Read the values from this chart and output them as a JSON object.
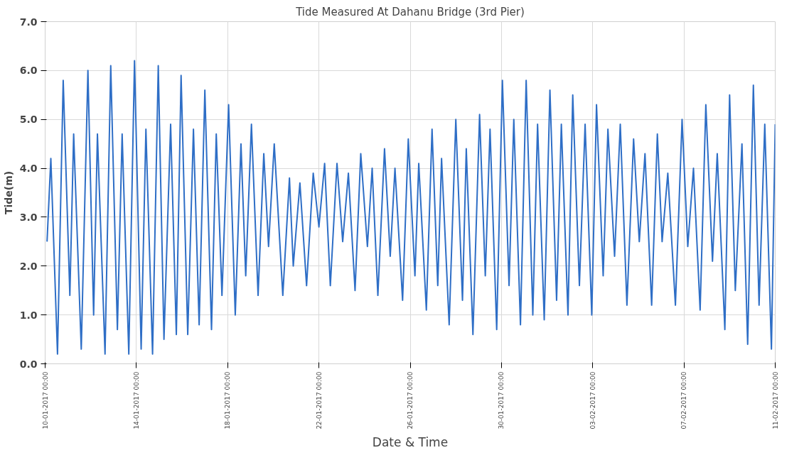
{
  "chart_data": {
    "type": "line",
    "title": "Tide Measured At Dahanu Bridge (3rd Pier)",
    "xlabel": "Date & Time",
    "ylabel": "Tide(m)",
    "x": [
      "2017-01-10T02:00",
      "2017-01-10T06:00",
      "2017-01-10T13:00",
      "2017-01-10T19:00",
      "2017-01-11T02:00",
      "2017-01-11T06:00",
      "2017-01-11T14:00",
      "2017-01-11T21:00",
      "2017-01-12T03:00",
      "2017-01-12T07:00",
      "2017-01-12T15:00",
      "2017-01-12T21:00",
      "2017-01-13T04:00",
      "2017-01-13T09:00",
      "2017-01-13T16:00",
      "2017-01-13T22:00",
      "2017-01-14T05:00",
      "2017-01-14T10:00",
      "2017-01-14T17:00",
      "2017-01-14T23:00",
      "2017-01-15T05:00",
      "2017-01-15T12:00",
      "2017-01-15T18:00",
      "2017-01-15T23:00",
      "2017-01-16T06:00",
      "2017-01-16T12:00",
      "2017-01-16T18:00",
      "2017-01-17T00:00",
      "2017-01-17T07:00",
      "2017-01-17T12:00",
      "2017-01-17T18:00",
      "2017-01-18T01:00",
      "2017-01-18T08:00",
      "2017-01-18T14:00",
      "2017-01-18T19:00",
      "2017-01-19T01:00",
      "2017-01-19T08:00",
      "2017-01-19T14:00",
      "2017-01-19T19:00",
      "2017-01-20T01:00",
      "2017-01-20T10:00",
      "2017-01-20T17:00",
      "2017-01-20T21:00",
      "2017-01-21T04:00",
      "2017-01-21T11:00",
      "2017-01-21T18:00",
      "2017-01-22T00:00",
      "2017-01-22T06:00",
      "2017-01-22T12:00",
      "2017-01-22T19:00",
      "2017-01-23T01:00",
      "2017-01-23T07:00",
      "2017-01-23T14:00",
      "2017-01-23T20:00",
      "2017-01-24T03:00",
      "2017-01-24T08:00",
      "2017-01-24T14:00",
      "2017-01-24T21:00",
      "2017-01-25T03:00",
      "2017-01-25T08:00",
      "2017-01-25T16:00",
      "2017-01-25T22:00",
      "2017-01-26T05:00",
      "2017-01-26T09:00",
      "2017-01-26T17:00",
      "2017-01-26T23:00",
      "2017-01-27T05:00",
      "2017-01-27T09:00",
      "2017-01-27T17:00",
      "2017-01-28T00:00",
      "2017-01-28T07:00",
      "2017-01-28T11:00",
      "2017-01-28T18:00",
      "2017-01-29T01:00",
      "2017-01-29T07:00",
      "2017-01-29T12:00",
      "2017-01-29T19:00",
      "2017-01-30T01:00",
      "2017-01-30T08:00",
      "2017-01-30T13:00",
      "2017-01-30T20:00",
      "2017-01-31T02:00",
      "2017-01-31T09:00",
      "2017-01-31T14:00",
      "2017-01-31T21:00",
      "2017-02-01T03:00",
      "2017-02-01T10:00",
      "2017-02-01T15:00",
      "2017-02-01T22:00",
      "2017-02-02T03:00",
      "2017-02-02T10:00",
      "2017-02-02T16:00",
      "2017-02-02T23:00",
      "2017-02-03T04:00",
      "2017-02-03T11:00",
      "2017-02-03T16:00",
      "2017-02-03T23:00",
      "2017-02-04T05:00",
      "2017-02-04T12:00",
      "2017-02-04T19:00",
      "2017-02-05T01:00",
      "2017-02-05T07:00",
      "2017-02-05T14:00",
      "2017-02-05T20:00",
      "2017-02-06T01:00",
      "2017-02-06T07:00",
      "2017-02-06T15:00",
      "2017-02-06T22:00",
      "2017-02-07T04:00",
      "2017-02-07T10:00",
      "2017-02-07T17:00",
      "2017-02-07T23:00",
      "2017-02-08T06:00",
      "2017-02-08T11:00",
      "2017-02-08T19:00",
      "2017-02-09T00:00",
      "2017-02-09T06:00",
      "2017-02-09T13:00",
      "2017-02-09T19:00",
      "2017-02-10T01:00",
      "2017-02-10T07:00",
      "2017-02-10T13:00",
      "2017-02-10T20:00",
      "2017-02-11T00:00"
    ],
    "series": [
      {
        "color": "#2e6ec6",
        "values": [
          2.5,
          4.2,
          0.2,
          5.8,
          1.4,
          4.7,
          0.3,
          6.0,
          1.0,
          4.7,
          0.2,
          6.1,
          0.7,
          4.7,
          0.2,
          6.2,
          0.3,
          4.8,
          0.2,
          6.1,
          0.5,
          4.9,
          0.6,
          5.9,
          0.6,
          4.8,
          0.8,
          5.6,
          0.7,
          4.7,
          1.4,
          5.3,
          1.0,
          4.5,
          1.8,
          4.9,
          1.4,
          4.3,
          2.4,
          4.5,
          1.4,
          3.8,
          2.0,
          3.7,
          1.6,
          3.9,
          2.8,
          4.1,
          1.6,
          4.1,
          2.5,
          3.9,
          1.5,
          4.3,
          2.4,
          4.0,
          1.4,
          4.4,
          2.2,
          4.0,
          1.3,
          4.6,
          1.8,
          4.1,
          1.1,
          4.8,
          1.6,
          4.2,
          0.8,
          5.0,
          1.3,
          4.4,
          0.6,
          5.1,
          1.8,
          4.8,
          0.7,
          5.8,
          1.6,
          5.0,
          0.8,
          5.8,
          1.0,
          4.9,
          0.9,
          5.6,
          1.3,
          4.9,
          1.0,
          5.5,
          1.6,
          4.9,
          1.0,
          5.3,
          1.8,
          4.8,
          2.2,
          4.9,
          1.2,
          4.6,
          2.5,
          4.3,
          1.2,
          4.7,
          2.5,
          3.9,
          1.2,
          5.0,
          2.4,
          4.0,
          1.1,
          5.3,
          2.1,
          4.3,
          0.7,
          5.5,
          1.5,
          4.5,
          0.4,
          5.7,
          1.2,
          4.9,
          0.3,
          4.9
        ]
      }
    ],
    "xlim": [
      "2017-01-10T00:00",
      "2017-02-11T00:00"
    ],
    "xticks": [
      {
        "value": "2017-01-10T00:00",
        "label": "10-01-2017 00:00"
      },
      {
        "value": "2017-01-14T00:00",
        "label": "14-01-2017 00:00"
      },
      {
        "value": "2017-01-18T00:00",
        "label": "18-01-2017 00:00"
      },
      {
        "value": "2017-01-22T00:00",
        "label": "22-01-2017 00:00"
      },
      {
        "value": "2017-01-26T00:00",
        "label": "26-01-2017 00:00"
      },
      {
        "value": "2017-01-30T00:00",
        "label": "30-01-2017 00:00"
      },
      {
        "value": "2017-02-03T00:00",
        "label": "03-02-2017 00:00"
      },
      {
        "value": "2017-02-07T00:00",
        "label": "07-02-2017 00:00"
      },
      {
        "value": "2017-02-11T00:00",
        "label": "11-02-2017 00:00"
      }
    ],
    "ylim": [
      0,
      7
    ],
    "yticks": [
      {
        "value": 0,
        "label": "0.0"
      },
      {
        "value": 1,
        "label": "1.0"
      },
      {
        "value": 2,
        "label": "2.0"
      },
      {
        "value": 3,
        "label": "3.0"
      },
      {
        "value": 4,
        "label": "4.0"
      },
      {
        "value": 5,
        "label": "5.0"
      },
      {
        "value": 6,
        "label": "6.0"
      },
      {
        "value": 7,
        "label": "7.0"
      }
    ],
    "grid": true,
    "marker": "none",
    "line_style": "solid"
  }
}
